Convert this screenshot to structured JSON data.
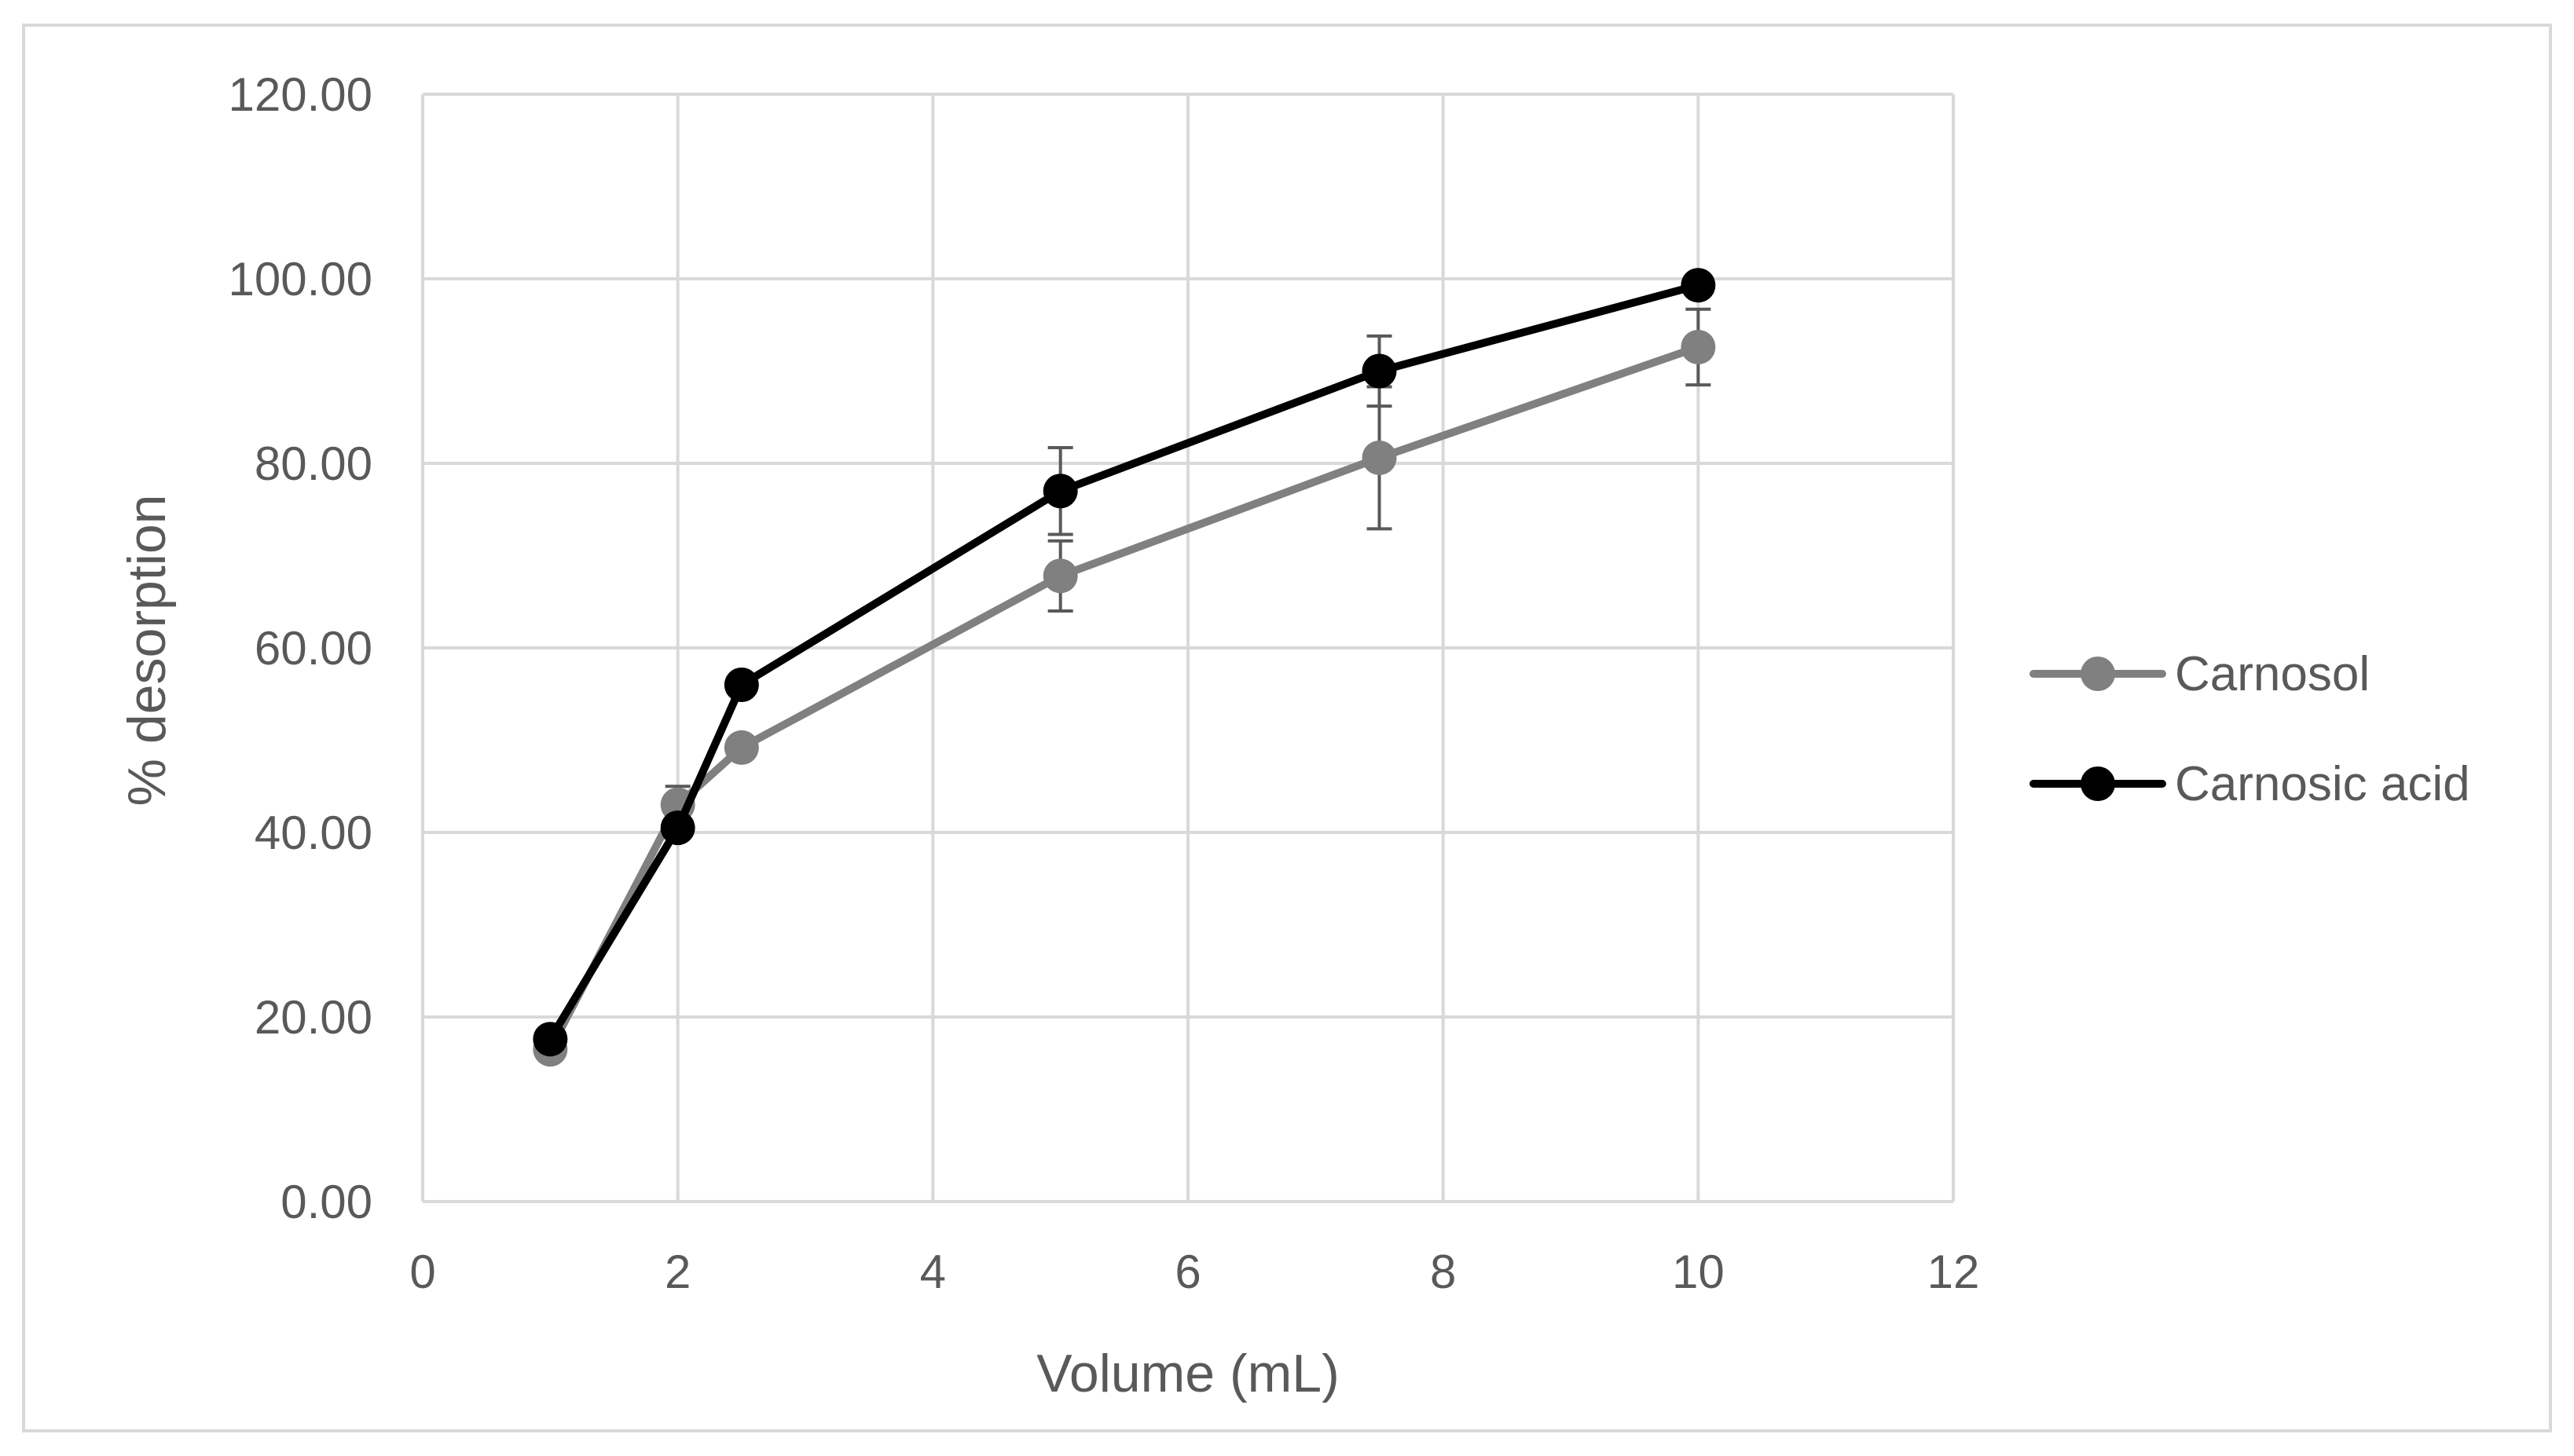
{
  "chart_data": {
    "type": "line",
    "title": "",
    "xlabel": "Volume (mL)",
    "ylabel": "% desorption",
    "xlim": [
      0,
      12
    ],
    "ylim": [
      0,
      120
    ],
    "x_ticks": [
      "0",
      "2",
      "4",
      "6",
      "8",
      "10",
      "12"
    ],
    "y_ticks": [
      "0.00",
      "20.00",
      "40.00",
      "60.00",
      "80.00",
      "100.00",
      "120.00"
    ],
    "grid": true,
    "legend_position": "right",
    "series": [
      {
        "name": "Carnosol",
        "color": "#808080",
        "x": [
          1,
          2,
          2.5,
          5,
          7.5,
          10
        ],
        "y": [
          16.5,
          43.0,
          49.2,
          67.8,
          80.6,
          92.6
        ],
        "error": [
          0,
          2.0,
          0,
          3.8,
          7.7,
          4.1
        ]
      },
      {
        "name": "Carnosic acid",
        "color": "#000000",
        "x": [
          1,
          2,
          2.5,
          5,
          7.5,
          10
        ],
        "y": [
          17.6,
          40.5,
          56.0,
          77.0,
          90.0,
          99.3
        ],
        "error": [
          0,
          0,
          0,
          4.7,
          3.8,
          0
        ]
      }
    ]
  }
}
